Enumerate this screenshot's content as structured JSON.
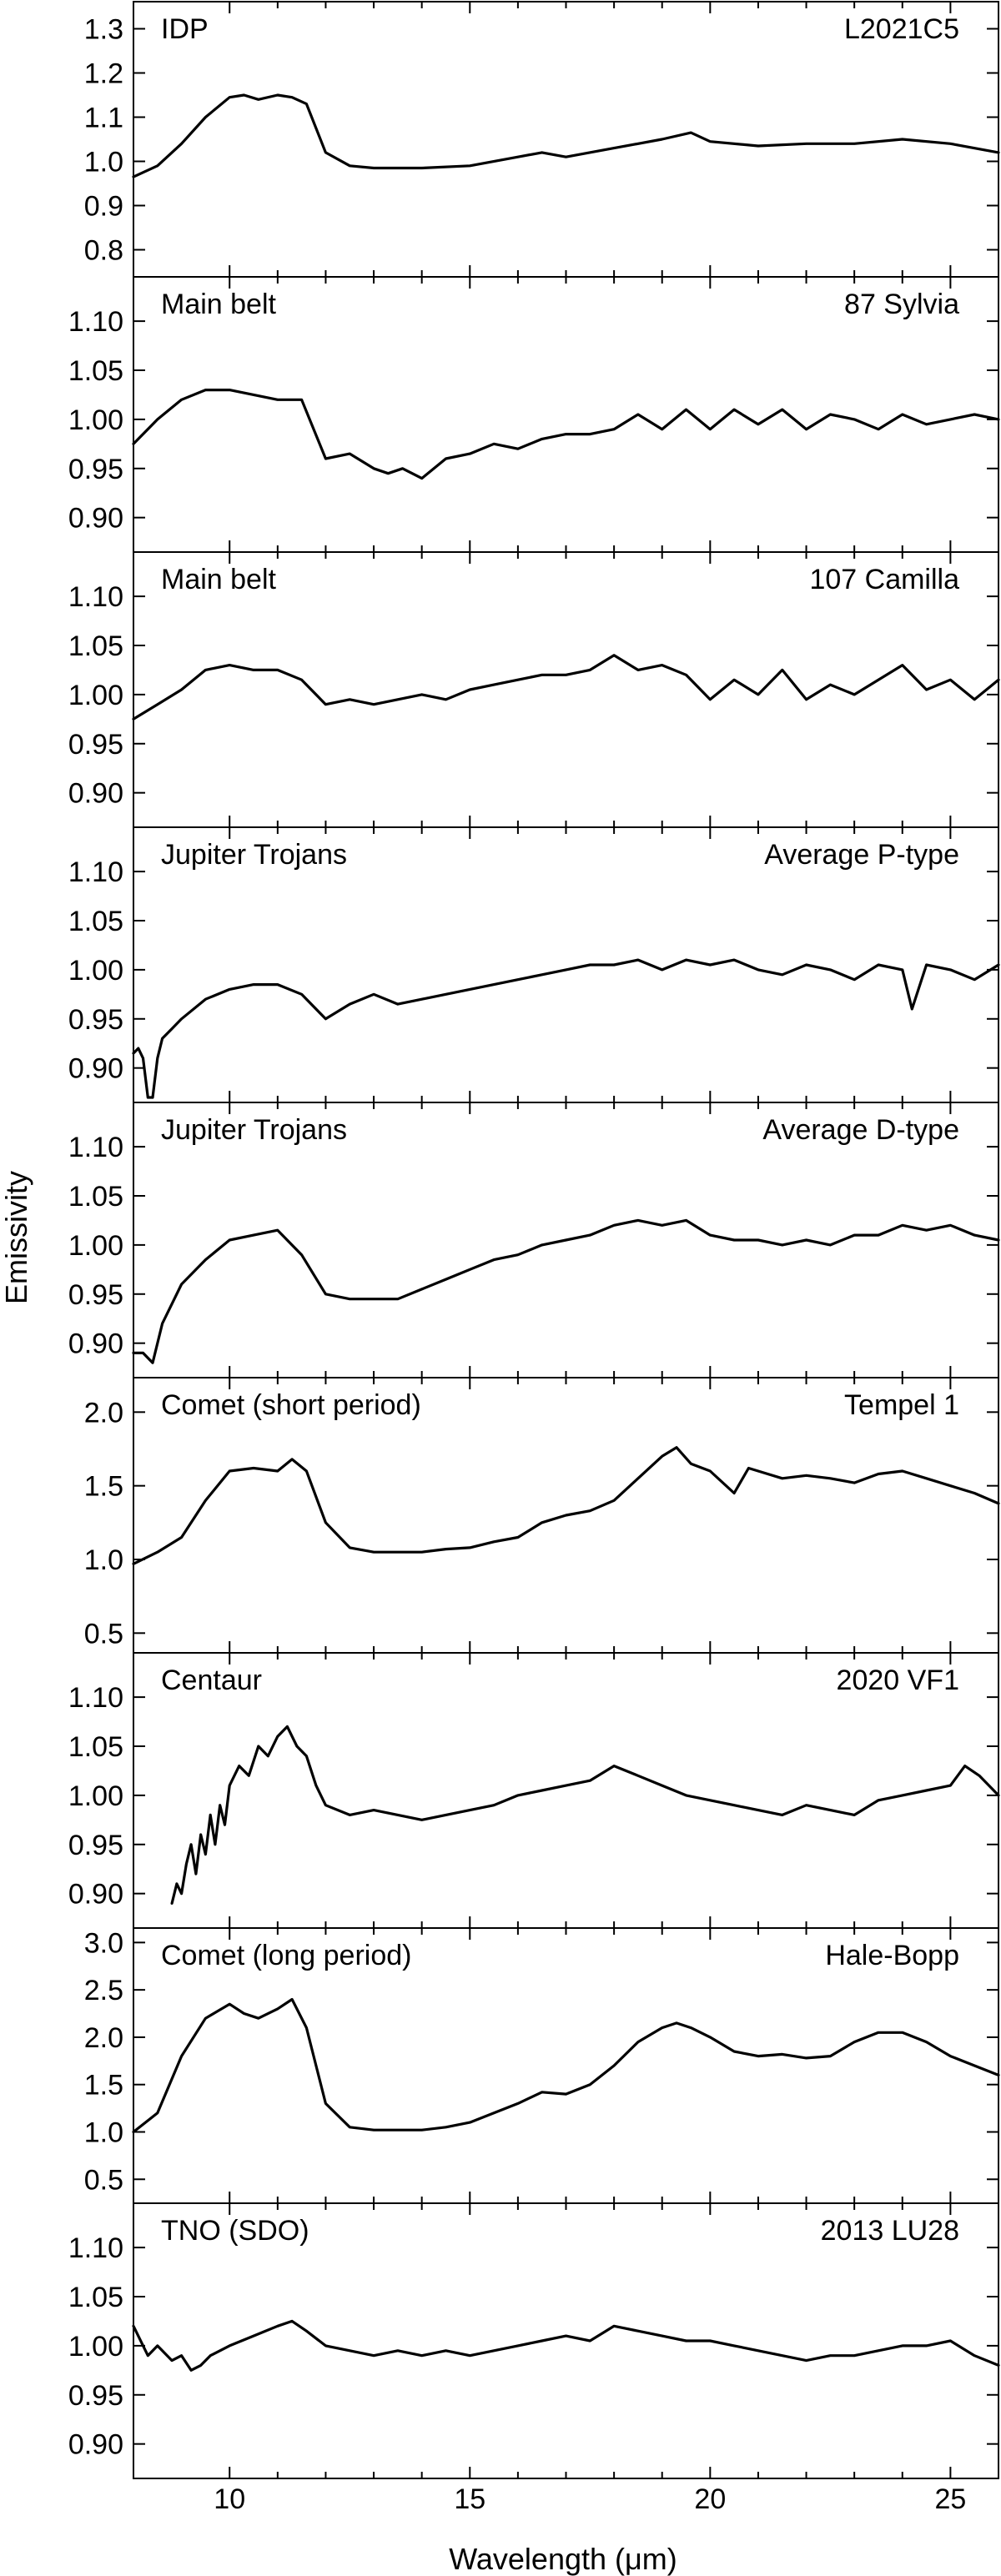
{
  "figure": {
    "ylabel": "Emissivity",
    "xlabel": "Wavelength (μm)"
  },
  "chart_data": [
    {
      "type": "line",
      "panel_label_left": "IDP",
      "panel_label_right": "L2021C5",
      "ylim": [
        0.75,
        1.35
      ],
      "yticks": [
        "0.8",
        "0.9",
        "1.0",
        "1.1",
        "1.2",
        "1.3"
      ],
      "x": [
        8.0,
        8.5,
        9.0,
        9.5,
        10.0,
        10.3,
        10.6,
        11.0,
        11.3,
        11.6,
        12.0,
        12.5,
        13.0,
        13.5,
        14.0,
        15.0,
        16.0,
        16.5,
        17.0,
        18.0,
        19.0,
        19.6,
        20.0,
        21.0,
        22.0,
        23.0,
        24.0,
        25.0,
        26.0
      ],
      "y": [
        0.965,
        0.99,
        1.04,
        1.1,
        1.145,
        1.15,
        1.14,
        1.15,
        1.145,
        1.13,
        1.02,
        0.99,
        0.985,
        0.985,
        0.985,
        0.99,
        1.01,
        1.02,
        1.01,
        1.03,
        1.05,
        1.065,
        1.045,
        1.035,
        1.04,
        1.04,
        1.05,
        1.04,
        1.02
      ]
    },
    {
      "type": "line",
      "panel_label_left": "Main belt",
      "panel_label_right": "87 Sylvia",
      "ylim": [
        0.87,
        1.14
      ],
      "yticks": [
        "0.90",
        "0.95",
        "1.00",
        "1.05",
        "1.10"
      ],
      "x": [
        8.0,
        8.5,
        9.0,
        9.5,
        10.0,
        10.5,
        11.0,
        11.5,
        12.0,
        12.5,
        13.0,
        13.3,
        13.6,
        14.0,
        14.5,
        15.0,
        15.5,
        16.0,
        16.5,
        17.0,
        17.5,
        18.0,
        18.5,
        19.0,
        19.5,
        20.0,
        20.5,
        21.0,
        21.5,
        22.0,
        22.5,
        23.0,
        23.5,
        24.0,
        24.5,
        25.0,
        25.5,
        26.0
      ],
      "y": [
        0.975,
        1.0,
        1.02,
        1.03,
        1.03,
        1.025,
        1.02,
        1.02,
        0.96,
        0.965,
        0.95,
        0.945,
        0.95,
        0.94,
        0.96,
        0.965,
        0.975,
        0.97,
        0.98,
        0.985,
        0.985,
        0.99,
        1.005,
        0.99,
        1.01,
        0.99,
        1.01,
        0.995,
        1.01,
        0.99,
        1.005,
        1.0,
        0.99,
        1.005,
        0.995,
        1.0,
        1.005,
        1.0
      ]
    },
    {
      "type": "line",
      "panel_label_left": "Main belt",
      "panel_label_right": "107 Camilla",
      "ylim": [
        0.87,
        1.14
      ],
      "yticks": [
        "0.90",
        "0.95",
        "1.00",
        "1.05",
        "1.10"
      ],
      "x": [
        8.0,
        8.5,
        9.0,
        9.5,
        10.0,
        10.5,
        11.0,
        11.5,
        12.0,
        12.5,
        13.0,
        13.5,
        14.0,
        14.5,
        15.0,
        15.5,
        16.0,
        16.5,
        17.0,
        17.5,
        18.0,
        18.5,
        19.0,
        19.5,
        20.0,
        20.5,
        21.0,
        21.5,
        22.0,
        22.5,
        23.0,
        23.5,
        24.0,
        24.5,
        25.0,
        25.5,
        26.0
      ],
      "y": [
        0.975,
        0.99,
        1.005,
        1.025,
        1.03,
        1.025,
        1.025,
        1.015,
        0.99,
        0.995,
        0.99,
        0.995,
        1.0,
        0.995,
        1.005,
        1.01,
        1.015,
        1.02,
        1.02,
        1.025,
        1.04,
        1.025,
        1.03,
        1.02,
        0.995,
        1.015,
        1.0,
        1.025,
        0.995,
        1.01,
        1.0,
        1.015,
        1.03,
        1.005,
        1.015,
        0.995,
        1.015
      ]
    },
    {
      "type": "line",
      "panel_label_left": "Jupiter Trojans",
      "panel_label_right": "Average P-type",
      "ylim": [
        0.87,
        1.14
      ],
      "yticks": [
        "0.90",
        "0.95",
        "1.00",
        "1.05",
        "1.10"
      ],
      "x": [
        8.0,
        8.1,
        8.2,
        8.3,
        8.4,
        8.5,
        8.6,
        8.8,
        9.0,
        9.5,
        10.0,
        10.5,
        11.0,
        11.5,
        12.0,
        12.5,
        13.0,
        13.5,
        14.0,
        14.5,
        15.0,
        15.5,
        16.0,
        16.5,
        17.0,
        17.5,
        18.0,
        18.5,
        19.0,
        19.5,
        20.0,
        20.5,
        21.0,
        21.5,
        22.0,
        22.5,
        23.0,
        23.5,
        24.0,
        24.2,
        24.5,
        25.0,
        25.5,
        26.0
      ],
      "y": [
        0.915,
        0.92,
        0.91,
        0.87,
        0.87,
        0.91,
        0.93,
        0.94,
        0.95,
        0.97,
        0.98,
        0.985,
        0.985,
        0.975,
        0.95,
        0.965,
        0.975,
        0.965,
        0.97,
        0.975,
        0.98,
        0.985,
        0.99,
        0.995,
        1.0,
        1.005,
        1.005,
        1.01,
        1.0,
        1.01,
        1.005,
        1.01,
        1.0,
        0.995,
        1.005,
        1.0,
        0.99,
        1.005,
        1.0,
        0.96,
        1.005,
        1.0,
        0.99,
        1.005
      ]
    },
    {
      "type": "line",
      "panel_label_left": "Jupiter Trojans",
      "panel_label_right": "Average D-type",
      "ylim": [
        0.87,
        1.14
      ],
      "yticks": [
        "0.90",
        "0.95",
        "1.00",
        "1.05",
        "1.10"
      ],
      "x": [
        8.0,
        8.2,
        8.4,
        8.6,
        8.8,
        9.0,
        9.5,
        10.0,
        10.5,
        11.0,
        11.5,
        12.0,
        12.5,
        13.0,
        13.5,
        14.0,
        14.5,
        15.0,
        15.5,
        16.0,
        16.5,
        17.0,
        17.5,
        18.0,
        18.5,
        19.0,
        19.5,
        20.0,
        20.5,
        21.0,
        21.5,
        22.0,
        22.5,
        23.0,
        23.5,
        24.0,
        24.5,
        25.0,
        25.5,
        26.0
      ],
      "y": [
        0.89,
        0.89,
        0.88,
        0.92,
        0.94,
        0.96,
        0.985,
        1.005,
        1.01,
        1.015,
        0.99,
        0.95,
        0.945,
        0.945,
        0.945,
        0.955,
        0.965,
        0.975,
        0.985,
        0.99,
        1.0,
        1.005,
        1.01,
        1.02,
        1.025,
        1.02,
        1.025,
        1.01,
        1.005,
        1.005,
        1.0,
        1.005,
        1.0,
        1.01,
        1.01,
        1.02,
        1.015,
        1.02,
        1.01,
        1.005
      ]
    },
    {
      "type": "line",
      "panel_label_left": "Comet (short period)",
      "panel_label_right": "Tempel 1",
      "ylim": [
        0.4,
        2.2
      ],
      "yticks": [
        "0.5",
        "1.0",
        "1.5",
        "2.0"
      ],
      "x": [
        8.0,
        8.5,
        9.0,
        9.5,
        10.0,
        10.5,
        11.0,
        11.3,
        11.6,
        12.0,
        12.5,
        13.0,
        13.5,
        14.0,
        14.5,
        15.0,
        15.5,
        16.0,
        16.5,
        17.0,
        17.5,
        18.0,
        18.5,
        19.0,
        19.3,
        19.6,
        20.0,
        20.5,
        20.8,
        21.0,
        21.5,
        22.0,
        22.5,
        23.0,
        23.5,
        24.0,
        24.5,
        25.0,
        25.5,
        26.0
      ],
      "y": [
        0.97,
        1.05,
        1.15,
        1.4,
        1.6,
        1.62,
        1.6,
        1.68,
        1.6,
        1.25,
        1.08,
        1.05,
        1.05,
        1.05,
        1.07,
        1.08,
        1.12,
        1.15,
        1.25,
        1.3,
        1.33,
        1.4,
        1.55,
        1.7,
        1.76,
        1.65,
        1.6,
        1.45,
        1.62,
        1.6,
        1.55,
        1.57,
        1.55,
        1.52,
        1.58,
        1.6,
        1.55,
        1.5,
        1.45,
        1.38
      ]
    },
    {
      "type": "line",
      "panel_label_left": "Centaur",
      "panel_label_right": "2020 VF1",
      "ylim": [
        0.87,
        1.14
      ],
      "yticks": [
        "0.90",
        "0.95",
        "1.00",
        "1.05",
        "1.10"
      ],
      "x": [
        8.8,
        8.9,
        9.0,
        9.1,
        9.2,
        9.3,
        9.4,
        9.5,
        9.6,
        9.7,
        9.8,
        9.9,
        10.0,
        10.2,
        10.4,
        10.6,
        10.8,
        11.0,
        11.2,
        11.4,
        11.6,
        11.8,
        12.0,
        12.5,
        13.0,
        13.5,
        14.0,
        14.5,
        15.0,
        15.5,
        16.0,
        16.5,
        17.0,
        17.5,
        18.0,
        18.5,
        19.0,
        19.5,
        20.0,
        20.5,
        21.0,
        21.5,
        22.0,
        22.5,
        23.0,
        23.5,
        24.0,
        24.5,
        25.0,
        25.3,
        25.6,
        26.0
      ],
      "y": [
        0.89,
        0.91,
        0.9,
        0.93,
        0.95,
        0.92,
        0.96,
        0.94,
        0.98,
        0.95,
        0.99,
        0.97,
        1.01,
        1.03,
        1.02,
        1.05,
        1.04,
        1.06,
        1.07,
        1.05,
        1.04,
        1.01,
        0.99,
        0.98,
        0.985,
        0.98,
        0.975,
        0.98,
        0.985,
        0.99,
        1.0,
        1.005,
        1.01,
        1.015,
        1.03,
        1.02,
        1.01,
        1.0,
        0.995,
        0.99,
        0.985,
        0.98,
        0.99,
        0.985,
        0.98,
        0.995,
        1.0,
        1.005,
        1.01,
        1.03,
        1.02,
        1.0
      ]
    },
    {
      "type": "line",
      "panel_label_left": "Comet (long period)",
      "panel_label_right": "Hale-Bopp",
      "ylim": [
        0.3,
        3.1
      ],
      "yticks": [
        "0.5",
        "1.0",
        "1.5",
        "2.0",
        "2.5",
        "3.0"
      ],
      "x": [
        8.0,
        8.5,
        9.0,
        9.5,
        10.0,
        10.3,
        10.6,
        11.0,
        11.3,
        11.6,
        12.0,
        12.5,
        13.0,
        13.5,
        14.0,
        14.5,
        15.0,
        15.5,
        16.0,
        16.5,
        17.0,
        17.5,
        18.0,
        18.5,
        19.0,
        19.3,
        19.6,
        20.0,
        20.5,
        21.0,
        21.5,
        22.0,
        22.5,
        23.0,
        23.5,
        24.0,
        24.5,
        25.0,
        25.5,
        26.0
      ],
      "y": [
        1.0,
        1.2,
        1.8,
        2.2,
        2.35,
        2.25,
        2.2,
        2.3,
        2.4,
        2.1,
        1.3,
        1.05,
        1.02,
        1.02,
        1.02,
        1.05,
        1.1,
        1.2,
        1.3,
        1.42,
        1.4,
        1.5,
        1.7,
        1.95,
        2.1,
        2.15,
        2.1,
        2.0,
        1.85,
        1.8,
        1.82,
        1.78,
        1.8,
        1.95,
        2.05,
        2.05,
        1.95,
        1.8,
        1.7,
        1.6
      ]
    },
    {
      "type": "line",
      "panel_label_left": "TNO (SDO)",
      "panel_label_right": "2013 LU28",
      "ylim": [
        0.87,
        1.14
      ],
      "yticks": [
        "0.90",
        "0.95",
        "1.00",
        "1.05",
        "1.10"
      ],
      "xticks": [
        "10",
        "15",
        "20",
        "25"
      ],
      "x": [
        8.0,
        8.3,
        8.5,
        8.8,
        9.0,
        9.2,
        9.4,
        9.6,
        10.0,
        10.5,
        11.0,
        11.3,
        11.6,
        12.0,
        12.5,
        13.0,
        13.5,
        14.0,
        14.5,
        15.0,
        15.5,
        16.0,
        16.5,
        17.0,
        17.5,
        18.0,
        18.5,
        19.0,
        19.5,
        20.0,
        20.5,
        21.0,
        21.5,
        22.0,
        22.5,
        23.0,
        23.5,
        24.0,
        24.5,
        25.0,
        25.5,
        26.0
      ],
      "y": [
        1.02,
        0.99,
        1.0,
        0.985,
        0.99,
        0.975,
        0.98,
        0.99,
        1.0,
        1.01,
        1.02,
        1.025,
        1.015,
        1.0,
        0.995,
        0.99,
        0.995,
        0.99,
        0.995,
        0.99,
        0.995,
        1.0,
        1.005,
        1.01,
        1.005,
        1.02,
        1.015,
        1.01,
        1.005,
        1.005,
        1.0,
        0.995,
        0.99,
        0.985,
        0.99,
        0.99,
        0.995,
        1.0,
        1.0,
        1.005,
        0.99,
        0.98
      ]
    }
  ]
}
